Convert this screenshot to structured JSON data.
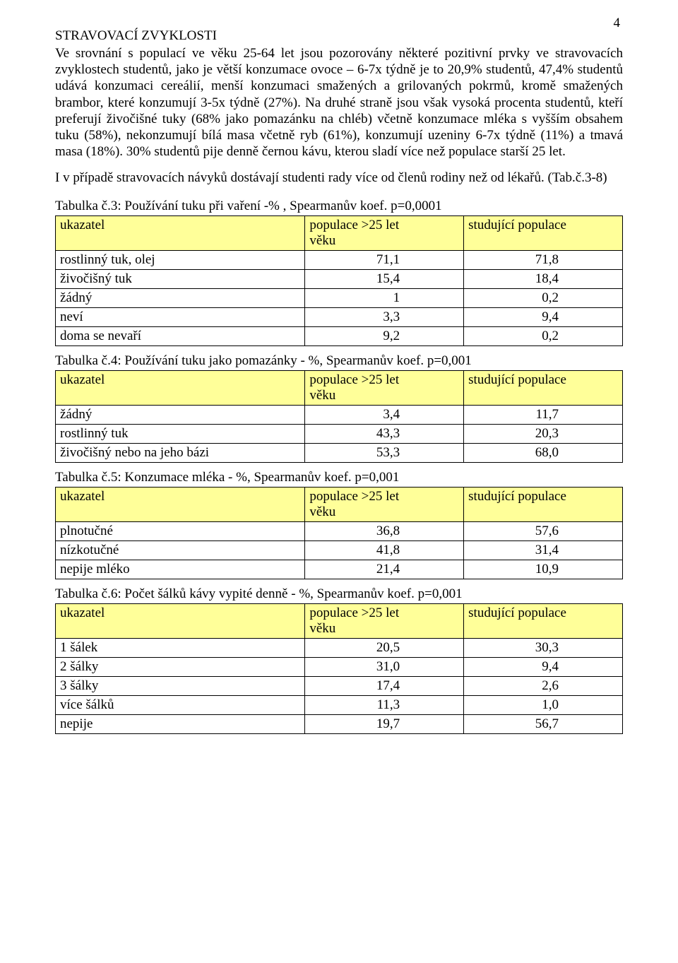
{
  "pageNumber": "4",
  "heading": "STRAVOVACÍ ZVYKLOSTI",
  "paragraph1": "Ve srovnání s populací ve věku 25-64 let jsou pozorovány některé pozitivní prvky ve stravovacích zvyklostech studentů, jako je větší konzumace ovoce – 6-7x týdně je to 20,9% studentů, 47,4% studentů udává konzumaci cereálií, menší konzumaci smažených a grilovaných pokrmů, kromě smažených brambor, které konzumují 3-5x týdně (27%). Na druhé straně jsou však vysoká procenta studentů, kteří preferují živočišné tuky (68% jako pomazánku na chléb) včetně konzumace mléka s vyšším obsahem tuku (58%), nekonzumují bílá masa včetně ryb (61%), konzumují uzeniny 6-7x týdně (11%) a tmavá masa (18%). 30% studentů pije denně černou kávu, kterou sladí více než populace starší 25 let.",
  "paragraph2": "I v případě stravovacích návyků dostávají studenti rady více od členů rodiny než od lékařů. (Tab.č.3-8)",
  "columnHeaders": {
    "col1": "ukazatel",
    "col2a": "populace >25 let",
    "col2b": "věku",
    "col3": "studující populace"
  },
  "table3": {
    "title": "Tabulka č.3:  Používání tuku při vaření -% , Spearmanův koef. p=0,0001",
    "rows": [
      {
        "label": "rostlinný tuk, olej",
        "v1": "71,1",
        "v2": "71,8"
      },
      {
        "label": "živočišný tuk",
        "v1": "15,4",
        "v2": "18,4"
      },
      {
        "label": "žádný",
        "v1": "1",
        "v2": "0,2"
      },
      {
        "label": "neví",
        "v1": "3,3",
        "v2": "9,4"
      },
      {
        "label": "doma se nevaří",
        "v1": "9,2",
        "v2": "0,2"
      }
    ]
  },
  "table4": {
    "title": "Tabulka č.4: Používání tuku jako pomazánky - %, Spearmanův koef. p=0,001",
    "rows": [
      {
        "label": "žádný",
        "v1": "3,4",
        "v2": "11,7"
      },
      {
        "label": "rostlinný tuk",
        "v1": "43,3",
        "v2": "20,3"
      },
      {
        "label": "živočišný nebo na jeho bázi",
        "v1": "53,3",
        "v2": "68,0"
      }
    ]
  },
  "table5": {
    "title": "Tabulka č.5: Konzumace mléka - %, Spearmanův koef. p=0,001",
    "rows": [
      {
        "label": "plnotučné",
        "v1": "36,8",
        "v2": "57,6"
      },
      {
        "label": "nízkotučné",
        "v1": "41,8",
        "v2": "31,4"
      },
      {
        "label": "nepije mléko",
        "v1": "21,4",
        "v2": "10,9"
      }
    ]
  },
  "table6": {
    "title": "Tabulka č.6: Počet šálků kávy vypité denně - %, Spearmanův koef. p=0,001",
    "rows": [
      {
        "label": "1 šálek",
        "v1": "20,5",
        "v2": "30,3"
      },
      {
        "label": "2 šálky",
        "v1": "31,0",
        "v2": "9,4"
      },
      {
        "label": "3 šálky",
        "v1": "17,4",
        "v2": "2,6"
      },
      {
        "label": "více šálků",
        "v1": "11,3",
        "v2": "1,0"
      },
      {
        "label": "nepije",
        "v1": "19,7",
        "v2": "56,7"
      }
    ]
  }
}
